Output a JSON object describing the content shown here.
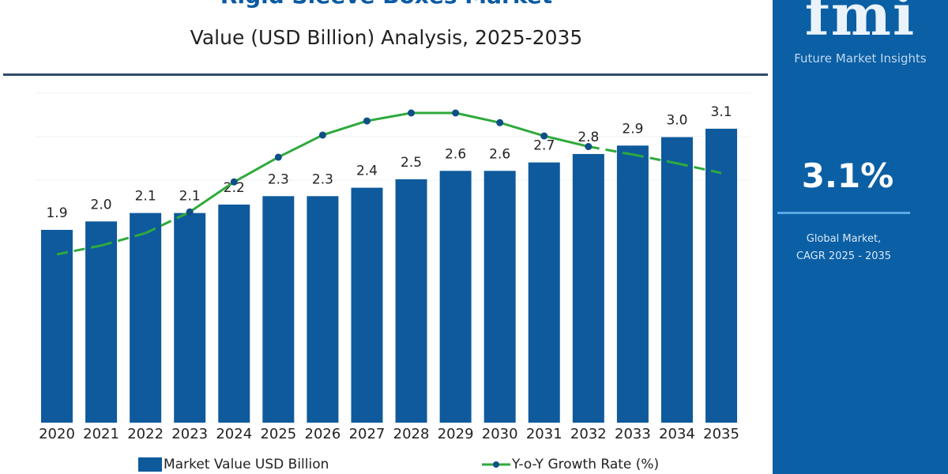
{
  "header": {
    "title": "Rigid Sleeve Boxes Market",
    "subtitle": "Value (USD Billion) Analysis, 2025-2035"
  },
  "panel": {
    "logo": "fmi",
    "brand": "Future Market Insights",
    "cagr_value": "3.1%",
    "cagr_label_1": "Global Market,",
    "cagr_label_2": "CAGR 2025 - 2035"
  },
  "colors": {
    "bar": "#0e5a9c",
    "line": "#2faa3c",
    "marker": "#0e4f86",
    "panel": "#0b5fa5"
  },
  "chart_data": {
    "type": "bar+line",
    "title": "Rigid Sleeve Boxes Market",
    "subtitle": "Value (USD Billion) Analysis, 2025-2035",
    "categories": [
      "2020",
      "2021",
      "2022",
      "2023",
      "2024",
      "2025",
      "2026",
      "2027",
      "2028",
      "2029",
      "2030",
      "2031",
      "2032",
      "2033",
      "2034",
      "2035"
    ],
    "series": [
      {
        "name": "Market Value USD Billion",
        "type": "bar",
        "values": [
          1.9,
          2.0,
          2.1,
          2.1,
          2.2,
          2.3,
          2.3,
          2.4,
          2.5,
          2.6,
          2.6,
          2.7,
          2.8,
          2.9,
          3.0,
          3.1
        ],
        "labels": [
          "1.9",
          "2.0",
          "2.1",
          "2.1",
          "2.2",
          "2.3",
          "2.3",
          "2.4",
          "2.5",
          "2.6",
          "2.6",
          "2.7",
          "2.8",
          "2.9",
          "3.0",
          "3.1"
        ]
      },
      {
        "name": "Y-o-Y Growth Rate (%)",
        "type": "line",
        "values": [
          2.0,
          2.1,
          2.24,
          2.48,
          2.82,
          3.1,
          3.35,
          3.51,
          3.6,
          3.6,
          3.49,
          3.34,
          3.22,
          3.13,
          3.03,
          2.92
        ],
        "dashed_ranges": [
          [
            "2020",
            "2023"
          ],
          [
            "2032",
            "2035"
          ]
        ]
      }
    ],
    "grid": true,
    "legend": "bottom"
  }
}
